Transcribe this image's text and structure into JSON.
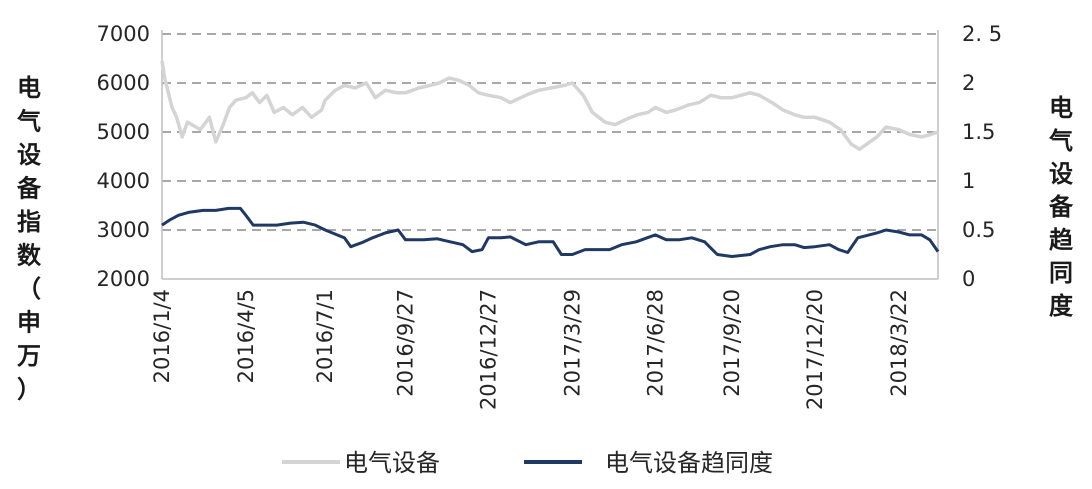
{
  "chart_data": {
    "type": "line",
    "x_labels": [
      "2016/1/4",
      "2016/4/5",
      "2016/7/1",
      "2016/9/27",
      "2016/12/27",
      "2017/3/29",
      "2017/6/28",
      "2017/9/20",
      "2017/12/20",
      "2018/3/22"
    ],
    "left_axis": {
      "label": "电气设备指数（申万）",
      "ylim": [
        2000,
        7000
      ],
      "ticks": [
        2000,
        3000,
        4000,
        5000,
        6000,
        7000
      ],
      "tick_labels": [
        "2000",
        "3000",
        "4000",
        "5000",
        "6000",
        "7000"
      ]
    },
    "right_axis": {
      "label": "电气设备趋同度",
      "ylim": [
        0,
        2.5
      ],
      "ticks": [
        0,
        0.5,
        1,
        1.5,
        2,
        2.5
      ],
      "tick_labels": [
        "0",
        "0.5",
        "1",
        "1.5",
        "2",
        "2. 5"
      ]
    },
    "grid": "horizontal-dashed",
    "legend_position": "bottom",
    "series": [
      {
        "name": "电气设备",
        "axis": "left",
        "color": "#d4d4d4",
        "points": [
          [
            "2016/1/4",
            6450
          ],
          [
            "2016/1/7",
            6100
          ],
          [
            "2016/1/11",
            5800
          ],
          [
            "2016/1/15",
            5500
          ],
          [
            "2016/1/20",
            5300
          ],
          [
            "2016/1/26",
            4900
          ],
          [
            "2016/2/1",
            5200
          ],
          [
            "2016/2/15",
            5050
          ],
          [
            "2016/2/25",
            5300
          ],
          [
            "2016/3/3",
            4800
          ],
          [
            "2016/3/10",
            5100
          ],
          [
            "2016/3/18",
            5500
          ],
          [
            "2016/3/25",
            5650
          ],
          [
            "2016/4/5",
            5700
          ],
          [
            "2016/4/12",
            5800
          ],
          [
            "2016/4/20",
            5600
          ],
          [
            "2016/4/28",
            5750
          ],
          [
            "2016/5/6",
            5400
          ],
          [
            "2016/5/16",
            5500
          ],
          [
            "2016/5/26",
            5350
          ],
          [
            "2016/6/6",
            5500
          ],
          [
            "2016/6/16",
            5300
          ],
          [
            "2016/6/27",
            5450
          ],
          [
            "2016/7/1",
            5650
          ],
          [
            "2016/7/12",
            5850
          ],
          [
            "2016/7/22",
            5950
          ],
          [
            "2016/8/3",
            5900
          ],
          [
            "2016/8/15",
            6000
          ],
          [
            "2016/8/25",
            5700
          ],
          [
            "2016/9/5",
            5850
          ],
          [
            "2016/9/18",
            5800
          ],
          [
            "2016/9/27",
            5800
          ],
          [
            "2016/10/12",
            5900
          ],
          [
            "2016/10/24",
            5950
          ],
          [
            "2016/11/3",
            6000
          ],
          [
            "2016/11/14",
            6100
          ],
          [
            "2016/11/25",
            6050
          ],
          [
            "2016/12/6",
            5950
          ],
          [
            "2016/12/16",
            5800
          ],
          [
            "2016/12/27",
            5750
          ],
          [
            "2017/1/10",
            5700
          ],
          [
            "2017/1/20",
            5600
          ],
          [
            "2017/2/6",
            5750
          ],
          [
            "2017/2/20",
            5850
          ],
          [
            "2017/3/6",
            5900
          ],
          [
            "2017/3/20",
            5950
          ],
          [
            "2017/3/29",
            6000
          ],
          [
            "2017/4/10",
            5750
          ],
          [
            "2017/4/20",
            5400
          ],
          [
            "2017/5/4",
            5200
          ],
          [
            "2017/5/15",
            5150
          ],
          [
            "2017/5/26",
            5250
          ],
          [
            "2017/6/8",
            5350
          ],
          [
            "2017/6/20",
            5400
          ],
          [
            "2017/6/28",
            5500
          ],
          [
            "2017/7/10",
            5400
          ],
          [
            "2017/7/20",
            5450
          ],
          [
            "2017/8/3",
            5550
          ],
          [
            "2017/8/15",
            5600
          ],
          [
            "2017/8/28",
            5750
          ],
          [
            "2017/9/8",
            5700
          ],
          [
            "2017/9/20",
            5700
          ],
          [
            "2017/10/10",
            5800
          ],
          [
            "2017/10/20",
            5750
          ],
          [
            "2017/11/3",
            5600
          ],
          [
            "2017/11/15",
            5450
          ],
          [
            "2017/11/28",
            5350
          ],
          [
            "2017/12/8",
            5300
          ],
          [
            "2017/12/20",
            5300
          ],
          [
            "2018/1/5",
            5200
          ],
          [
            "2018/1/17",
            5050
          ],
          [
            "2018/1/29",
            4750
          ],
          [
            "2018/2/7",
            4650
          ],
          [
            "2018/2/26",
            4900
          ],
          [
            "2018/3/8",
            5100
          ],
          [
            "2018/3/22",
            5050
          ],
          [
            "2018/4/3",
            4950
          ],
          [
            "2018/4/16",
            4900
          ],
          [
            "2018/4/26",
            4950
          ],
          [
            "2018/5/4",
            5000
          ]
        ]
      },
      {
        "name": "电气设备趋同度",
        "axis": "right",
        "color": "#1f3864",
        "points": [
          [
            "2016/1/4",
            0.55
          ],
          [
            "2016/1/12",
            0.6
          ],
          [
            "2016/1/22",
            0.65
          ],
          [
            "2016/2/2",
            0.68
          ],
          [
            "2016/2/18",
            0.7
          ],
          [
            "2016/3/3",
            0.7
          ],
          [
            "2016/3/17",
            0.72
          ],
          [
            "2016/3/30",
            0.72
          ],
          [
            "2016/4/5",
            0.65
          ],
          [
            "2016/4/13",
            0.55
          ],
          [
            "2016/4/25",
            0.55
          ],
          [
            "2016/5/9",
            0.55
          ],
          [
            "2016/5/24",
            0.57
          ],
          [
            "2016/6/7",
            0.58
          ],
          [
            "2016/6/20",
            0.55
          ],
          [
            "2016/7/1",
            0.5
          ],
          [
            "2016/7/14",
            0.45
          ],
          [
            "2016/7/22",
            0.42
          ],
          [
            "2016/7/29",
            0.33
          ],
          [
            "2016/8/10",
            0.37
          ],
          [
            "2016/8/22",
            0.42
          ],
          [
            "2016/9/5",
            0.47
          ],
          [
            "2016/9/19",
            0.5
          ],
          [
            "2016/9/27",
            0.4
          ],
          [
            "2016/10/17",
            0.4
          ],
          [
            "2016/11/1",
            0.41
          ],
          [
            "2016/11/15",
            0.38
          ],
          [
            "2016/11/29",
            0.35
          ],
          [
            "2016/12/9",
            0.28
          ],
          [
            "2016/12/20",
            0.3
          ],
          [
            "2016/12/27",
            0.42
          ],
          [
            "2017/1/10",
            0.42
          ],
          [
            "2017/1/20",
            0.43
          ],
          [
            "2017/2/6",
            0.35
          ],
          [
            "2017/2/20",
            0.38
          ],
          [
            "2017/3/8",
            0.38
          ],
          [
            "2017/3/17",
            0.25
          ],
          [
            "2017/3/29",
            0.25
          ],
          [
            "2017/4/12",
            0.3
          ],
          [
            "2017/4/25",
            0.3
          ],
          [
            "2017/5/9",
            0.3
          ],
          [
            "2017/5/22",
            0.35
          ],
          [
            "2017/6/7",
            0.38
          ],
          [
            "2017/6/19",
            0.42
          ],
          [
            "2017/6/28",
            0.45
          ],
          [
            "2017/7/10",
            0.4
          ],
          [
            "2017/7/24",
            0.4
          ],
          [
            "2017/8/7",
            0.42
          ],
          [
            "2017/8/21",
            0.38
          ],
          [
            "2017/9/4",
            0.25
          ],
          [
            "2017/9/20",
            0.23
          ],
          [
            "2017/10/10",
            0.25
          ],
          [
            "2017/10/20",
            0.3
          ],
          [
            "2017/11/1",
            0.33
          ],
          [
            "2017/11/15",
            0.35
          ],
          [
            "2017/11/28",
            0.35
          ],
          [
            "2017/12/8",
            0.32
          ],
          [
            "2017/12/20",
            0.33
          ],
          [
            "2018/1/5",
            0.35
          ],
          [
            "2018/1/15",
            0.3
          ],
          [
            "2018/1/25",
            0.27
          ],
          [
            "2018/2/5",
            0.42
          ],
          [
            "2018/2/26",
            0.47
          ],
          [
            "2018/3/8",
            0.5
          ],
          [
            "2018/3/22",
            0.48
          ],
          [
            "2018/4/3",
            0.45
          ],
          [
            "2018/4/16",
            0.45
          ],
          [
            "2018/4/25",
            0.4
          ],
          [
            "2018/5/4",
            0.28
          ]
        ]
      }
    ]
  }
}
